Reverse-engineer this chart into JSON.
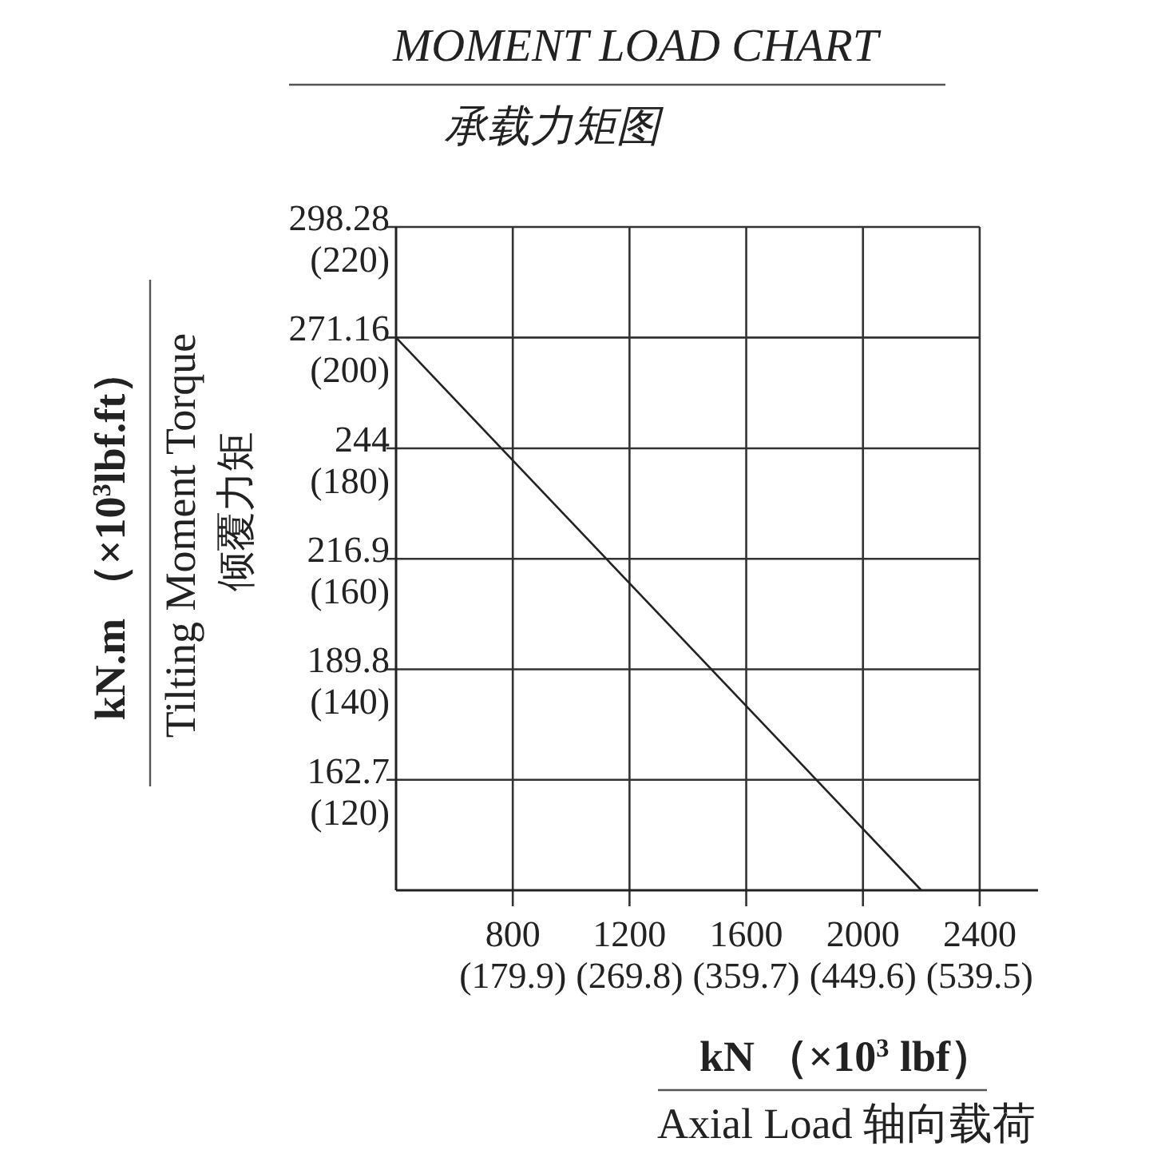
{
  "chart_data": {
    "type": "line",
    "title": "MOMENT LOAD CHART",
    "subtitle": "承载力矩图",
    "xlabel": "kN （×10$^{3}$ lbf）\nAxial Load  轴向载荷",
    "ylabel": "kN.m （×10$^{3}$lbf.ft）\nTilting Moment Torque\n倾覆力矩",
    "xlim": [
      400,
      2600
    ],
    "ylim": [
      135.6,
      298.28
    ],
    "xticks": [
      800,
      1200,
      1600,
      2000,
      2400
    ],
    "x2lim": [
      89.9,
      584.5
    ],
    "x2ticks": [
      {
        "value": 179.9,
        "label": "(179.9)"
      },
      {
        "value": 269.8,
        "label": "(269.8)"
      },
      {
        "value": 359.7,
        "label": "(359.7)"
      },
      {
        "value": 449.6,
        "label": "(449.6)"
      },
      {
        "value": 539.5,
        "label": "(539.5)"
      }
    ],
    "yticks": [
      162.7,
      189.8,
      216.9,
      244,
      271.16,
      298.28
    ],
    "y2lim": [
      100,
      220
    ],
    "y2ticks": [
      {
        "value": 120,
        "label": "(120)"
      },
      {
        "value": 140,
        "label": "(140)"
      },
      {
        "value": 160,
        "label": "(160)"
      },
      {
        "value": 180,
        "label": "(180)"
      },
      {
        "value": 200,
        "label": "(200)"
      },
      {
        "value": 220,
        "label": "(220)"
      }
    ],
    "grid": true,
    "marker": "none",
    "line_style": "solid",
    "series": [
      {
        "color": "#222222",
        "x": [
          400,
          2200
        ],
        "values": [
          271.16,
          135.6
        ]
      }
    ]
  }
}
